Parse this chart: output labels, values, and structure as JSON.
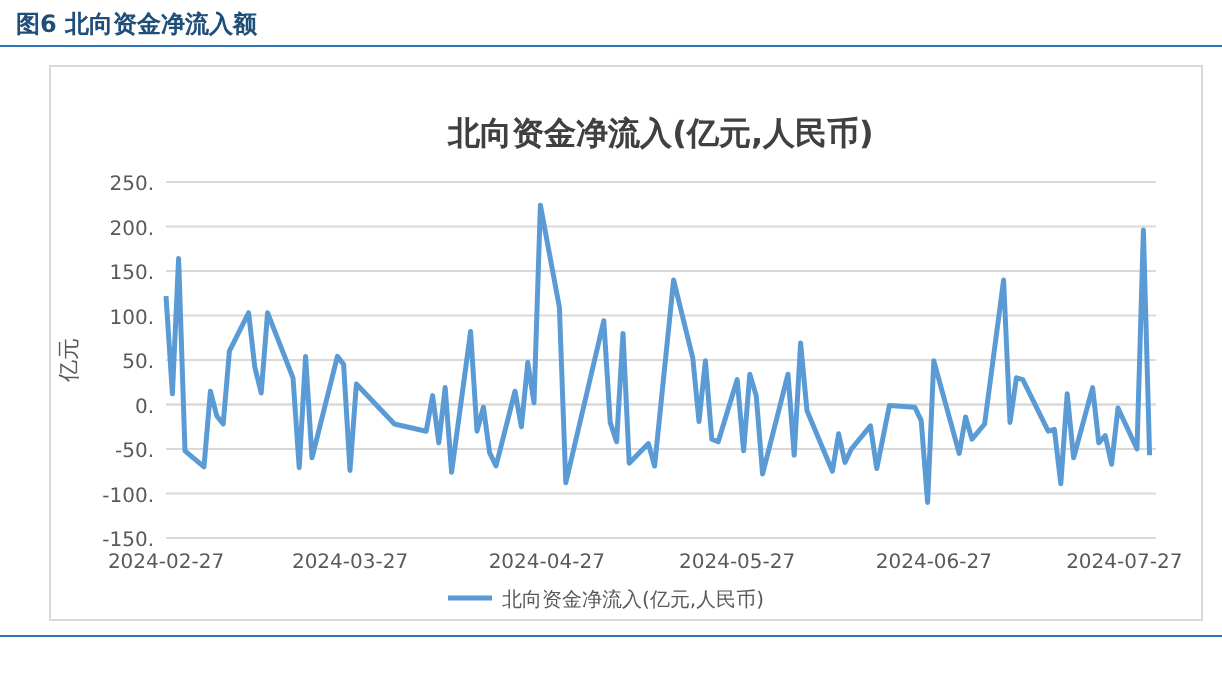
{
  "chart_data": {
    "type": "line",
    "title": "北向资金净流入(亿元,人民币)",
    "ylabel": "亿元",
    "annotations": [
      "图6  北向资金净流入额"
    ],
    "x": [
      "2024-02-27",
      "2024-02-28",
      "2024-02-29",
      "2024-03-01",
      "2024-03-04",
      "2024-03-05",
      "2024-03-06",
      "2024-03-07",
      "2024-03-08",
      "2024-03-11",
      "2024-03-12",
      "2024-03-13",
      "2024-03-14",
      "2024-03-18",
      "2024-03-19",
      "2024-03-20",
      "2024-03-21",
      "2024-03-25",
      "2024-03-26",
      "2024-03-27",
      "2024-03-28",
      "2024-04-03",
      "2024-04-08",
      "2024-04-09",
      "2024-04-10",
      "2024-04-11",
      "2024-04-12",
      "2024-04-15",
      "2024-04-16",
      "2024-04-17",
      "2024-04-18",
      "2024-04-19",
      "2024-04-22",
      "2024-04-23",
      "2024-04-24",
      "2024-04-25",
      "2024-04-26",
      "2024-04-29",
      "2024-04-30",
      "2024-05-06",
      "2024-05-07",
      "2024-05-08",
      "2024-05-09",
      "2024-05-10",
      "2024-05-13",
      "2024-05-14",
      "2024-05-17",
      "2024-05-20",
      "2024-05-21",
      "2024-05-22",
      "2024-05-23",
      "2024-05-24",
      "2024-05-27",
      "2024-05-28",
      "2024-05-29",
      "2024-05-30",
      "2024-05-31",
      "2024-06-04",
      "2024-06-05",
      "2024-06-06",
      "2024-06-07",
      "2024-06-11",
      "2024-06-12",
      "2024-06-13",
      "2024-06-14",
      "2024-06-17",
      "2024-06-18",
      "2024-06-20",
      "2024-06-24",
      "2024-06-25",
      "2024-06-26",
      "2024-06-27",
      "2024-07-01",
      "2024-07-02",
      "2024-07-03",
      "2024-07-05",
      "2024-07-08",
      "2024-07-09",
      "2024-07-10",
      "2024-07-11",
      "2024-07-15",
      "2024-07-16",
      "2024-07-17",
      "2024-07-18",
      "2024-07-19",
      "2024-07-22",
      "2024-07-23",
      "2024-07-24",
      "2024-07-25",
      "2024-07-26",
      "2024-07-29",
      "2024-07-30",
      "2024-07-31"
    ],
    "series": [
      {
        "name": "北向资金净流入(亿元,人民币)",
        "color": "#5b9bd5",
        "values": [
          122,
          12,
          164,
          -52,
          -70,
          15,
          -13,
          -22,
          60,
          103,
          42,
          13,
          103,
          30,
          -71,
          54,
          -60,
          54,
          45,
          -74,
          23,
          -22,
          -30,
          10,
          -43,
          19,
          -76,
          82,
          -30,
          -3,
          -54,
          -69,
          15,
          -25,
          47,
          2,
          224,
          109,
          -88,
          94,
          -20,
          -42,
          80,
          -66,
          -44,
          -69,
          140,
          52,
          -19,
          49,
          -39,
          -42,
          28,
          -52,
          34,
          10,
          -78,
          34,
          -57,
          69,
          -7,
          -75,
          -33,
          -65,
          -50,
          -24,
          -72,
          -1,
          -3,
          -18,
          -110,
          49,
          -55,
          -14,
          -39,
          -22,
          140,
          -20,
          30,
          28,
          -30,
          -28,
          -89,
          12,
          -60,
          19,
          -43,
          -35,
          -67,
          -4,
          -50,
          196,
          -57
        ]
      }
    ],
    "xlim": [
      "2024-02-27",
      "2024-08-01"
    ],
    "xticks": [
      "2024-02-27",
      "2024-03-27",
      "2024-04-27",
      "2024-05-27",
      "2024-06-27",
      "2024-07-27"
    ],
    "ylim": [
      -150,
      250
    ],
    "yticks": [
      {
        "value": -150,
        "label": "-150."
      },
      {
        "value": -100,
        "label": "-100."
      },
      {
        "value": -50,
        "label": "-50."
      },
      {
        "value": 0,
        "label": "0."
      },
      {
        "value": 50,
        "label": "50."
      },
      {
        "value": 100,
        "label": "100."
      },
      {
        "value": 150,
        "label": "150."
      },
      {
        "value": 200,
        "label": "200."
      },
      {
        "value": 250,
        "label": "250."
      }
    ],
    "grid": "y",
    "legend": "bottom",
    "marker": "none",
    "line_style": "solid"
  }
}
